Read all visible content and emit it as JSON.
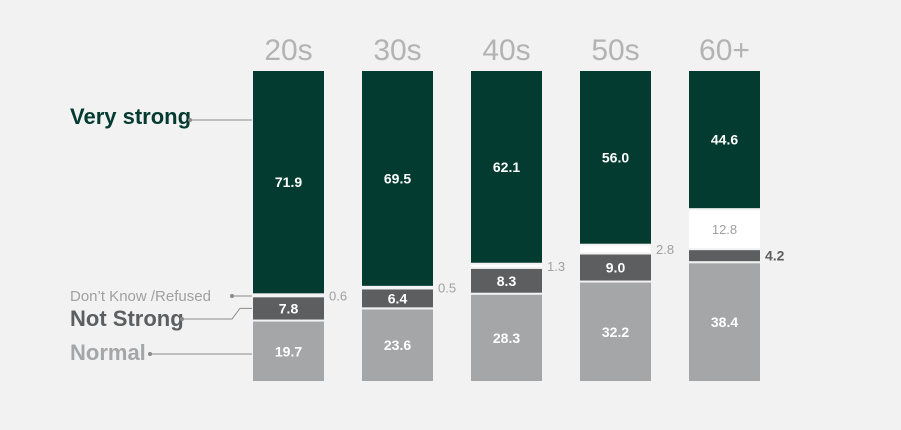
{
  "chart_data": {
    "type": "bar",
    "stacked": true,
    "title": "",
    "xlabel": "",
    "ylabel": "",
    "ylim": [
      0,
      100
    ],
    "grid": false,
    "legend_placement": "left",
    "categories": [
      "20s",
      "30s",
      "40s",
      "50s",
      "60+"
    ],
    "series": [
      {
        "name": "Normal",
        "color": "#a5a6a8",
        "values": [
          19.7,
          23.6,
          28.3,
          32.2,
          38.4
        ]
      },
      {
        "name": "Not Strong",
        "color": "#5d5e60",
        "values": [
          7.8,
          6.4,
          8.3,
          9.0,
          4.2
        ]
      },
      {
        "name": "Don’t Know /Refused",
        "color": "#ffffff",
        "values": [
          0.6,
          0.5,
          1.3,
          2.8,
          12.8
        ]
      },
      {
        "name": "Very strong",
        "color": "#033b30",
        "values": [
          71.9,
          69.5,
          62.1,
          56.0,
          44.6
        ]
      }
    ]
  },
  "labels": {
    "normal": [
      "19.7",
      "23.6",
      "28.3",
      "32.2",
      "38.4"
    ],
    "not_strong": [
      "7.8",
      "6.4",
      "8.3",
      "9.0",
      "4.2"
    ],
    "dont_know": [
      "0.6",
      "0.5",
      "1.3",
      "2.8",
      "12.8"
    ],
    "very_strong": [
      "71.9",
      "69.5",
      "62.1",
      "56.0",
      "44.6"
    ]
  },
  "colors": {
    "background": "#f2f2f2",
    "very_strong": "#033b30",
    "not_strong": "#5d5e60",
    "normal": "#a5a6a8",
    "dont_know": "#ffffff",
    "category_text": "#b3b3b3",
    "side_text": "#a0a0a0",
    "legend_line": "#8a8a8a"
  }
}
